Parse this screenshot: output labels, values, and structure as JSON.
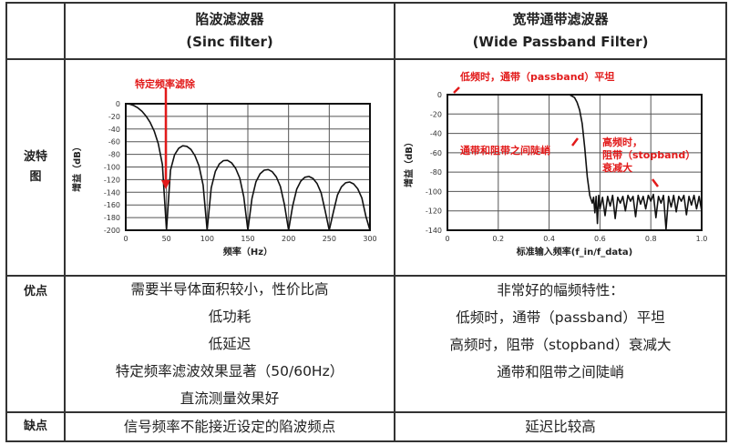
{
  "header": {
    "col1": {
      "title": "陷波滤波器",
      "subtitle": "(Sinc filter)"
    },
    "col2": {
      "title": "宽带通带滤波器",
      "subtitle": "(Wide Passband Filter)"
    }
  },
  "rows": {
    "chart_label": "波特图",
    "pros_label": "优点",
    "cons_label": "缺点"
  },
  "pros": {
    "col1": [
      "需要半导体面积较小，性价比高",
      "低功耗",
      "低延迟",
      "特定频率滤波效果显著（50/60Hz）",
      "直流测量效果好"
    ],
    "col2": [
      "非常好的幅频特性：",
      "低频时，通带（passband）平坦",
      "高频时，阻带（stopband）衰减大",
      "通带和阻带之间陡峭"
    ]
  },
  "cons": {
    "col1": "信号频率不能接近设定的陷波频点",
    "col2": "延迟比较高"
  },
  "annotations": {
    "sinc_notch": "特定频率滤除",
    "passband": "低频时，通带（passband）平坦",
    "transition": "通带和阻带之间陡峭",
    "stopband": [
      "高频时，",
      "阻带（stopband）",
      "衰减大"
    ]
  },
  "colors": {
    "annotation": "#e21a1a",
    "grid": "#555555",
    "curve": "#111111"
  },
  "chart_data": [
    {
      "type": "line",
      "xlabel": "频率（Hz）",
      "ylabel": "增益（dB）",
      "xlim": [
        0,
        300
      ],
      "ylim": [
        -200,
        0
      ],
      "xticks": [
        0,
        50,
        100,
        150,
        200,
        250,
        300
      ],
      "yticks": [
        0,
        -20,
        -40,
        -60,
        -80,
        -100,
        -120,
        -140,
        -160,
        -180,
        -200
      ],
      "grid": true,
      "x": [
        0,
        5,
        10,
        15,
        20,
        25,
        30,
        35,
        40,
        45,
        50,
        55,
        60,
        65,
        70,
        75,
        80,
        85,
        90,
        95,
        100,
        105,
        110,
        115,
        120,
        125,
        130,
        135,
        140,
        145,
        150,
        155,
        160,
        165,
        170,
        175,
        180,
        185,
        190,
        195,
        200,
        205,
        210,
        215,
        220,
        225,
        230,
        235,
        240,
        245,
        250,
        255,
        260,
        265,
        270,
        275,
        280,
        285,
        290,
        295,
        300
      ],
      "y": [
        0,
        -0.7,
        -2.9,
        -6.6,
        -12.1,
        -19.6,
        -29.7,
        -43.4,
        -63.1,
        -96.1,
        -200,
        -104.9,
        -80.7,
        -70.3,
        -66.5,
        -67.3,
        -72.3,
        -82.0,
        -98.3,
        -128.6,
        -200,
        -132.9,
        -107.0,
        -95.1,
        -89.9,
        -89.5,
        -93.4,
        -102.1,
        -117.5,
        -147.0,
        -200,
        -149.9,
        -123.3,
        -110.8,
        -105.0,
        -104.1,
        -107.5,
        -115.8,
        -130.8,
        -159.8,
        -200,
        -162.0,
        -135.1,
        -122.3,
        -116.2,
        -115.0,
        -118.2,
        -126.1,
        -140.9,
        -169.7,
        -200,
        -171.5,
        -144.4,
        -131.4,
        -125.1,
        -123.8,
        -126.7,
        -134.5,
        -149.1,
        -177.8,
        -200
      ]
    },
    {
      "type": "line",
      "xlabel": "标准输入频率(f_in/f_data)",
      "ylabel": "增益（dB）",
      "xlim": [
        0,
        1.0
      ],
      "ylim": [
        -140,
        0
      ],
      "xticks": [
        "0",
        "0.2",
        "0.4",
        "0.6",
        "0.8",
        "1.0"
      ],
      "yticks": [
        "0",
        "-20",
        "-40",
        "-60",
        "-80",
        "-100",
        "-120",
        "-140"
      ],
      "grid": true,
      "x": [
        0,
        0.48,
        0.5,
        0.51,
        0.52,
        0.53,
        0.54,
        0.55,
        0.56,
        0.57,
        0.575,
        0.58,
        0.585,
        0.59,
        0.595,
        0.6,
        0.61,
        0.62,
        0.63,
        0.64,
        0.65,
        0.66,
        0.67,
        0.68,
        0.69,
        0.7,
        0.71,
        0.72,
        0.73,
        0.74,
        0.75,
        0.76,
        0.77,
        0.78,
        0.79,
        0.8,
        0.81,
        0.82,
        0.83,
        0.84,
        0.85,
        0.86,
        0.87,
        0.88,
        0.89,
        0.9,
        0.91,
        0.92,
        0.93,
        0.94,
        0.95,
        0.96,
        0.97,
        0.98,
        0.99,
        1.0
      ],
      "y": [
        0,
        0,
        -3,
        -8,
        -16,
        -30,
        -55,
        -85,
        -104,
        -112,
        -106,
        -122,
        -105,
        -133,
        -104,
        -118,
        -106,
        -125,
        -105,
        -115,
        -104,
        -128,
        -106,
        -112,
        -105,
        -120,
        -104,
        -110,
        -105,
        -126,
        -104,
        -113,
        -105,
        -118,
        -104,
        -110,
        -103,
        -127,
        -105,
        -112,
        -104,
        -139,
        -105,
        -116,
        -104,
        -121,
        -105,
        -110,
        -104,
        -124,
        -105,
        -114,
        -104,
        -118,
        -105,
        -120
      ]
    }
  ]
}
